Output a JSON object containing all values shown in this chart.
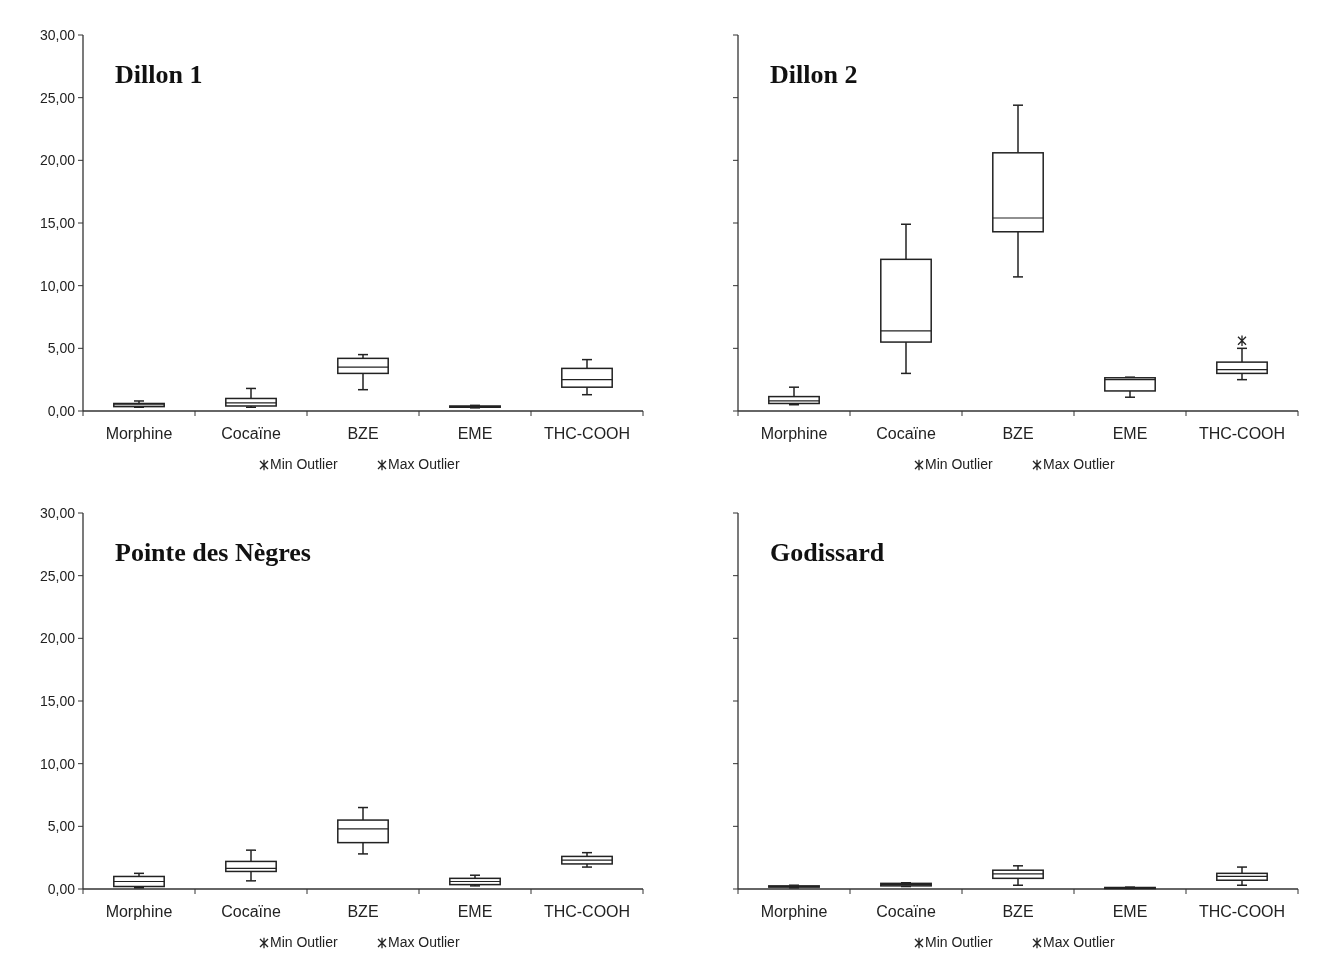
{
  "chart_data": [
    {
      "type": "box",
      "title": "Dillon 1",
      "categories": [
        "Morphine",
        "Cocaïne",
        "BZE",
        "EME",
        "THC-COOH"
      ],
      "ylim": [
        0,
        30
      ],
      "yticks": [
        {
          "value": 0,
          "label": "0,00"
        },
        {
          "value": 5,
          "label": "5,00"
        },
        {
          "value": 10,
          "label": "10,00"
        },
        {
          "value": 15,
          "label": "15,00"
        },
        {
          "value": 20,
          "label": "20,00"
        },
        {
          "value": 25,
          "label": "25,00"
        },
        {
          "value": 30,
          "label": "30,00"
        }
      ],
      "legend": "bottom",
      "marker": "cross",
      "series": [
        {
          "type": "box",
          "color": "#222222",
          "boxes": [
            {
              "low": 0.3,
              "q1": 0.35,
              "median": 0.5,
              "q3": 0.6,
              "high": 0.8
            },
            {
              "low": 0.3,
              "q1": 0.4,
              "median": 0.65,
              "q3": 1.0,
              "high": 1.8
            },
            {
              "low": 1.7,
              "q1": 3.0,
              "median": 3.5,
              "q3": 4.2,
              "high": 4.5
            },
            {
              "low": 0.25,
              "q1": 0.3,
              "median": 0.35,
              "q3": 0.4,
              "high": 0.45
            },
            {
              "low": 1.3,
              "q1": 1.9,
              "median": 2.5,
              "q3": 3.4,
              "high": 4.1
            }
          ]
        },
        {
          "type": "scatter",
          "name": "Min Outlier",
          "color": "#222222",
          "values": [
            null,
            null,
            null,
            null,
            null
          ]
        },
        {
          "type": "scatter",
          "name": "Max Outlier",
          "color": "#222222",
          "values": [
            null,
            null,
            null,
            null,
            null
          ]
        }
      ]
    },
    {
      "type": "box",
      "title": "Dillon 2",
      "categories": [
        "Morphine",
        "Cocaïne",
        "BZE",
        "EME",
        "THC-COOH"
      ],
      "ylim": [
        0,
        30
      ],
      "yticks": [
        {
          "value": 0,
          "label": null
        },
        {
          "value": 5,
          "label": null
        },
        {
          "value": 10,
          "label": null
        },
        {
          "value": 15,
          "label": null
        },
        {
          "value": 20,
          "label": null
        },
        {
          "value": 25,
          "label": null
        },
        {
          "value": 30,
          "label": null
        }
      ],
      "tick_labels": "x",
      "legend": "bottom",
      "marker": "cross",
      "series": [
        {
          "type": "box",
          "color": "#222222",
          "boxes": [
            {
              "low": 0.5,
              "q1": 0.6,
              "median": 0.8,
              "q3": 1.15,
              "high": 1.9
            },
            {
              "low": 3.0,
              "q1": 5.5,
              "median": 6.4,
              "q3": 12.1,
              "high": 14.9
            },
            {
              "low": 10.7,
              "q1": 14.3,
              "median": 15.4,
              "q3": 20.6,
              "high": 24.4
            },
            {
              "low": 1.1,
              "q1": 1.6,
              "median": 2.5,
              "q3": 2.65,
              "high": 2.7
            },
            {
              "low": 2.5,
              "q1": 3.0,
              "median": 3.3,
              "q3": 3.9,
              "high": 5.0
            }
          ]
        },
        {
          "type": "scatter",
          "name": "Min Outlier",
          "color": "#222222",
          "values": [
            null,
            null,
            null,
            null,
            null
          ]
        },
        {
          "type": "scatter",
          "name": "Max Outlier",
          "color": "#222222",
          "values": [
            null,
            null,
            null,
            null,
            5.6
          ]
        }
      ]
    },
    {
      "type": "box",
      "title": "Pointe des Nègres",
      "categories": [
        "Morphine",
        "Cocaïne",
        "BZE",
        "EME",
        "THC-COOH"
      ],
      "ylim": [
        0,
        30
      ],
      "yticks": [
        {
          "value": 0,
          "label": "0,00"
        },
        {
          "value": 5,
          "label": "5,00"
        },
        {
          "value": 10,
          "label": "10,00"
        },
        {
          "value": 15,
          "label": "15,00"
        },
        {
          "value": 20,
          "label": "20,00"
        },
        {
          "value": 25,
          "label": "25,00"
        },
        {
          "value": 30,
          "label": "30,00"
        }
      ],
      "legend": "bottom",
      "marker": "cross",
      "series": [
        {
          "type": "box",
          "color": "#222222",
          "boxes": [
            {
              "low": 0.1,
              "q1": 0.2,
              "median": 0.6,
              "q3": 1.0,
              "high": 1.25
            },
            {
              "low": 0.65,
              "q1": 1.4,
              "median": 1.65,
              "q3": 2.2,
              "high": 3.1
            },
            {
              "low": 2.8,
              "q1": 3.7,
              "median": 4.8,
              "q3": 5.5,
              "high": 6.5
            },
            {
              "low": 0.25,
              "q1": 0.35,
              "median": 0.6,
              "q3": 0.85,
              "high": 1.1
            },
            {
              "low": 1.75,
              "q1": 2.0,
              "median": 2.3,
              "q3": 2.6,
              "high": 2.9
            }
          ]
        },
        {
          "type": "scatter",
          "name": "Min Outlier",
          "color": "#222222",
          "values": [
            null,
            null,
            null,
            null,
            null
          ]
        },
        {
          "type": "scatter",
          "name": "Max Outlier",
          "color": "#222222",
          "values": [
            null,
            null,
            null,
            null,
            null
          ]
        }
      ]
    },
    {
      "type": "box",
      "title": "Godissard",
      "categories": [
        "Morphine",
        "Cocaïne",
        "BZE",
        "EME",
        "THC-COOH"
      ],
      "ylim": [
        0,
        30
      ],
      "yticks": [
        {
          "value": 0,
          "label": null
        },
        {
          "value": 5,
          "label": null
        },
        {
          "value": 10,
          "label": null
        },
        {
          "value": 15,
          "label": null
        },
        {
          "value": 20,
          "label": null
        },
        {
          "value": 25,
          "label": null
        },
        {
          "value": 30,
          "label": null
        }
      ],
      "tick_labels": "x",
      "legend": "bottom",
      "marker": "cross",
      "series": [
        {
          "type": "box",
          "color": "#222222",
          "boxes": [
            {
              "low": 0.1,
              "q1": 0.15,
              "median": 0.2,
              "q3": 0.25,
              "high": 0.3
            },
            {
              "low": 0.2,
              "q1": 0.25,
              "median": 0.35,
              "q3": 0.45,
              "high": 0.5
            },
            {
              "low": 0.3,
              "q1": 0.85,
              "median": 1.2,
              "q3": 1.5,
              "high": 1.85
            },
            {
              "low": 0.05,
              "q1": 0.08,
              "median": 0.1,
              "q3": 0.12,
              "high": 0.15
            },
            {
              "low": 0.3,
              "q1": 0.7,
              "median": 1.0,
              "q3": 1.25,
              "high": 1.75
            }
          ]
        },
        {
          "type": "scatter",
          "name": "Min Outlier",
          "color": "#222222",
          "values": [
            null,
            null,
            null,
            null,
            null
          ]
        },
        {
          "type": "scatter",
          "name": "Max Outlier",
          "color": "#222222",
          "values": [
            null,
            null,
            null,
            null,
            null
          ]
        }
      ]
    }
  ]
}
